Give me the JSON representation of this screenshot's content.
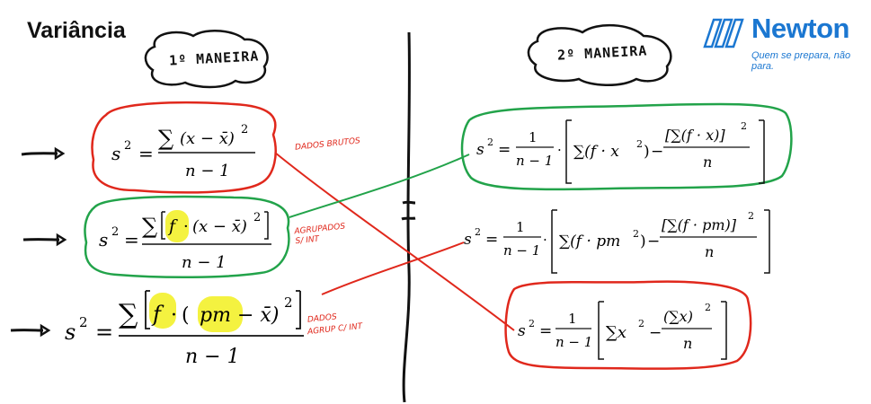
{
  "header": {
    "title": "Variância",
    "brand": "Newton",
    "tagline": "Quem se prepara, não para."
  },
  "labels": {
    "method1": "1º MANEIRA",
    "method2": "2º MANEIRA"
  },
  "notes": {
    "raw": "DADOS BRUTOS",
    "grouped": "AGRUPADOS S/ INT",
    "intervals_l1": "DADOS",
    "intervals_l2": "AGRUP C/ INT"
  },
  "left_formulas": {
    "raw": {
      "lhs": "s",
      "exp": "2",
      "eq": "=",
      "sum": "∑",
      "num_body": "(x − x̄)",
      "num_exp": "2",
      "den": "n − 1"
    },
    "grouped": {
      "lhs": "s",
      "exp": "2",
      "eq": "=",
      "sum": "∑",
      "f": "f",
      "dot": "·",
      "paren": "(x − x̄)",
      "num_exp": "2",
      "den": "n − 1"
    },
    "intervals": {
      "lhs": "s",
      "exp": "2",
      "eq": "=",
      "sum": "∑",
      "f": "f",
      "dot": "·",
      "open": "(",
      "pm": "pm",
      "rest": "− x̄)",
      "num_exp": "2",
      "den": "n − 1"
    }
  },
  "right_formulas": {
    "grouped": {
      "lhs": "s",
      "exp": "2",
      "eq": "=",
      "one": "1",
      "den": "n − 1",
      "dot": "·",
      "sum_term": "∑(f · x",
      "sq": "2",
      "close": ")",
      "minus": "−",
      "inner_num": "[∑(f · x)]",
      "inner_exp": "2",
      "inner_den": "n"
    },
    "intervals": {
      "lhs": "s",
      "exp": "2",
      "eq": "=",
      "one": "1",
      "den": "n − 1",
      "dot": "·",
      "sum_term": "∑(f · pm",
      "sq": "2",
      "close": ")",
      "minus": "−",
      "inner_num": "[∑(f · pm)]",
      "inner_exp": "2",
      "inner_den": "n"
    },
    "raw": {
      "lhs": "s",
      "exp": "2",
      "eq": "=",
      "one": "1",
      "den": "n − 1",
      "sum_term": "∑x",
      "sq": "2",
      "minus": "−",
      "inner_num": "(∑x)",
      "inner_exp": "2",
      "inner_den": "n"
    }
  },
  "colors": {
    "brand_blue": "#1b77d1",
    "ink_red": "#e0281c",
    "ink_green": "#22a34a",
    "highlight_yellow": "#f2f01e",
    "ink_black": "#111111"
  }
}
